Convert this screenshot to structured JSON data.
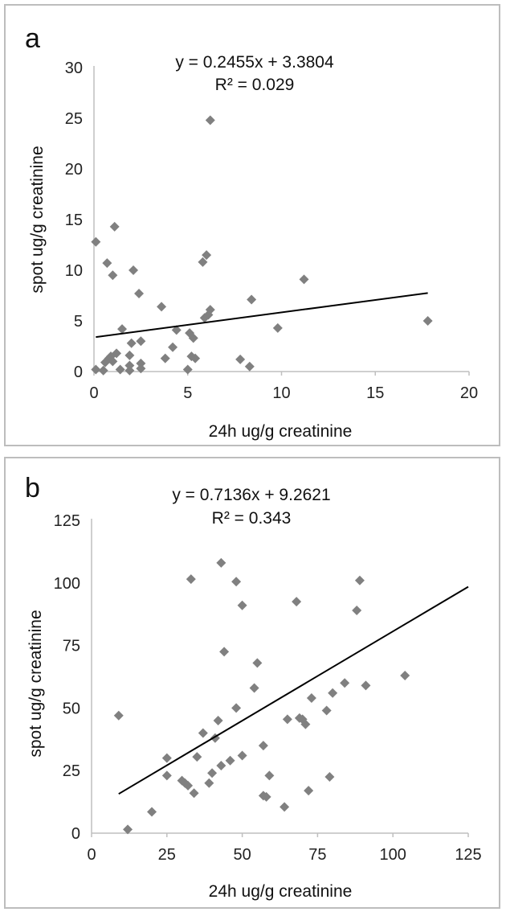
{
  "chart_data": [
    {
      "type": "scatter",
      "panel_label": "a",
      "equation": "y = 0.2455x + 3.3804",
      "r_squared": "R² = 0.029",
      "xlabel": "24h ug/g creatinine",
      "ylabel": "spot ug/g creatinine",
      "xlim": [
        0,
        20
      ],
      "ylim": [
        0,
        30
      ],
      "x_ticks": [
        0,
        5,
        10,
        15,
        20
      ],
      "y_ticks": [
        0,
        5,
        10,
        15,
        20,
        25,
        30
      ],
      "trendline": {
        "slope": 0.2455,
        "intercept": 3.3804,
        "x_range": [
          0.1,
          17.8
        ]
      },
      "marker_color": "#808080",
      "points": [
        [
          0.1,
          12.8
        ],
        [
          0.1,
          0.2
        ],
        [
          0.5,
          0.1
        ],
        [
          0.6,
          0.9
        ],
        [
          0.7,
          10.7
        ],
        [
          0.8,
          1.3
        ],
        [
          0.9,
          1.5
        ],
        [
          1.0,
          9.5
        ],
        [
          1.0,
          1.0
        ],
        [
          1.1,
          14.3
        ],
        [
          1.2,
          1.8
        ],
        [
          1.4,
          0.2
        ],
        [
          1.5,
          4.2
        ],
        [
          1.9,
          1.6
        ],
        [
          1.9,
          0.6
        ],
        [
          1.9,
          0.1
        ],
        [
          2.0,
          2.8
        ],
        [
          2.1,
          10.0
        ],
        [
          2.4,
          7.7
        ],
        [
          2.5,
          3.0
        ],
        [
          2.5,
          0.8
        ],
        [
          2.5,
          0.3
        ],
        [
          3.6,
          6.4
        ],
        [
          3.8,
          1.3
        ],
        [
          4.2,
          2.4
        ],
        [
          4.4,
          4.1
        ],
        [
          5.0,
          0.2
        ],
        [
          5.1,
          3.8
        ],
        [
          5.2,
          1.5
        ],
        [
          5.3,
          3.3
        ],
        [
          5.4,
          1.3
        ],
        [
          5.8,
          10.8
        ],
        [
          5.9,
          5.3
        ],
        [
          6.0,
          11.5
        ],
        [
          6.1,
          5.6
        ],
        [
          6.2,
          6.1
        ],
        [
          6.2,
          24.8
        ],
        [
          7.8,
          1.2
        ],
        [
          8.3,
          0.5
        ],
        [
          8.4,
          7.1
        ],
        [
          9.8,
          4.3
        ],
        [
          11.2,
          9.1
        ],
        [
          17.8,
          5.0
        ]
      ]
    },
    {
      "type": "scatter",
      "panel_label": "b",
      "equation": "y = 0.7136x + 9.2621",
      "r_squared": "R² = 0.343",
      "xlabel": "24h ug/g creatinine",
      "ylabel": "spot ug/g creatinine",
      "xlim": [
        0,
        125
      ],
      "ylim": [
        0,
        125
      ],
      "x_ticks": [
        0,
        25,
        50,
        75,
        100,
        125
      ],
      "y_ticks": [
        0,
        25,
        50,
        75,
        100,
        125
      ],
      "trendline": {
        "slope": 0.7136,
        "intercept": 9.2621,
        "x_range": [
          9,
          125
        ]
      },
      "marker_color": "#808080",
      "points": [
        [
          9,
          47
        ],
        [
          12,
          1.5
        ],
        [
          20,
          8.5
        ],
        [
          25,
          23
        ],
        [
          25,
          30
        ],
        [
          30,
          21
        ],
        [
          31,
          20
        ],
        [
          32,
          19
        ],
        [
          33,
          101.5
        ],
        [
          34,
          16
        ],
        [
          35,
          30.5
        ],
        [
          37,
          40
        ],
        [
          39,
          20
        ],
        [
          40,
          24
        ],
        [
          41,
          38
        ],
        [
          42,
          45
        ],
        [
          43,
          27
        ],
        [
          43,
          108
        ],
        [
          44,
          72.5
        ],
        [
          46,
          29
        ],
        [
          48,
          50
        ],
        [
          48,
          100.5
        ],
        [
          50,
          91
        ],
        [
          50,
          31
        ],
        [
          54,
          58
        ],
        [
          55,
          68
        ],
        [
          57,
          35
        ],
        [
          57,
          15
        ],
        [
          58,
          14.5
        ],
        [
          59,
          23
        ],
        [
          64,
          10.5
        ],
        [
          65,
          45.5
        ],
        [
          68,
          92.5
        ],
        [
          69,
          46
        ],
        [
          70,
          45.5
        ],
        [
          71,
          43.5
        ],
        [
          72,
          17
        ],
        [
          73,
          54
        ],
        [
          78,
          49
        ],
        [
          79,
          22.5
        ],
        [
          80,
          56
        ],
        [
          84,
          60
        ],
        [
          88,
          89
        ],
        [
          89,
          101
        ],
        [
          91,
          59
        ],
        [
          104,
          63
        ]
      ]
    }
  ]
}
